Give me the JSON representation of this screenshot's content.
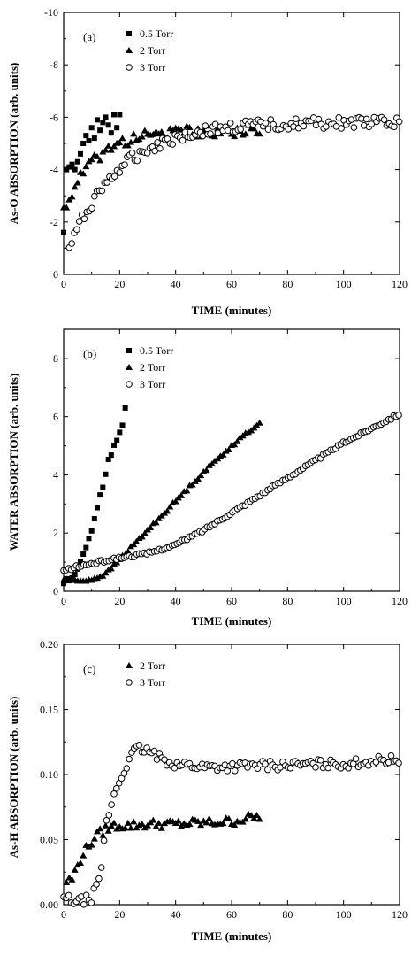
{
  "chart_data": [
    {
      "type": "scatter",
      "panel_label": "(a)",
      "xlabel": "TIME (minutes)",
      "ylabel": "As-O  ABSORPTION  (arb. units)",
      "xlim": [
        0,
        120
      ],
      "ylim": [
        0,
        -10
      ],
      "y_inverted": true,
      "x_ticks": [
        0,
        20,
        40,
        60,
        80,
        100,
        120
      ],
      "y_ticks": [
        0,
        -2,
        -4,
        -6,
        -8,
        -10
      ],
      "y_tick_labels": [
        "0",
        "-2",
        "-4",
        "-6",
        "-8",
        "-10"
      ],
      "legend_position": "top-left",
      "series": [
        {
          "name": "0.5 Torr",
          "marker": "filled-square",
          "x_range": [
            0,
            20
          ],
          "values_hint": "rapid rise",
          "points": [
            [
              0,
              -1.6
            ],
            [
              1,
              -4.0
            ],
            [
              2,
              -4.1
            ],
            [
              3,
              -4.2
            ],
            [
              4,
              -4.0
            ],
            [
              5,
              -4.3
            ],
            [
              6,
              -4.6
            ],
            [
              7,
              -5.0
            ],
            [
              8,
              -5.3
            ],
            [
              9,
              -5.1
            ],
            [
              10,
              -5.6
            ],
            [
              11,
              -5.2
            ],
            [
              12,
              -5.9
            ],
            [
              13,
              -5.5
            ],
            [
              14,
              -5.8
            ],
            [
              15,
              -6.0
            ],
            [
              16,
              -5.7
            ],
            [
              17,
              -5.4
            ],
            [
              18,
              -6.1
            ],
            [
              19,
              -5.6
            ],
            [
              20,
              -6.1
            ]
          ]
        },
        {
          "name": "2 Torr",
          "marker": "filled-triangle",
          "x_range": [
            0,
            70
          ],
          "model": {
            "a": -5.5,
            "b": -2.4,
            "tau": 11
          }
        },
        {
          "name": "3 Torr",
          "marker": "open-circle",
          "x_range": [
            2,
            120
          ],
          "model": {
            "a": -5.8,
            "b": -1.0,
            "tau": 18
          }
        }
      ]
    },
    {
      "type": "scatter",
      "panel_label": "(b)",
      "xlabel": "TIME (minutes)",
      "ylabel": "WATER  ABSORPTION  (arb. units)",
      "xlim": [
        0,
        120
      ],
      "ylim": [
        0,
        9
      ],
      "x_ticks": [
        0,
        20,
        40,
        60,
        80,
        100,
        120
      ],
      "y_ticks": [
        0,
        2,
        4,
        6,
        8
      ],
      "y_tick_labels": [
        "0",
        "2",
        "4",
        "6",
        "8"
      ],
      "legend_position": "top-left",
      "series": [
        {
          "name": "0.5 Torr",
          "marker": "filled-square",
          "points": [
            [
              0,
              0.3
            ],
            [
              1,
              0.4
            ],
            [
              2,
              0.4
            ],
            [
              3,
              0.5
            ],
            [
              4,
              0.6
            ],
            [
              5,
              0.8
            ],
            [
              6,
              1.0
            ],
            [
              7,
              1.3
            ],
            [
              8,
              1.5
            ],
            [
              9,
              1.8
            ],
            [
              10,
              2.1
            ],
            [
              11,
              2.5
            ],
            [
              12,
              2.9
            ],
            [
              13,
              3.3
            ],
            [
              14,
              3.6
            ],
            [
              15,
              4.0
            ],
            [
              16,
              4.5
            ],
            [
              17,
              4.7
            ],
            [
              18,
              5.0
            ],
            [
              19,
              5.2
            ],
            [
              20,
              5.5
            ],
            [
              21,
              5.7
            ],
            [
              22,
              6.3
            ]
          ]
        },
        {
          "name": "2 Torr",
          "marker": "filled-triangle",
          "points": [
            [
              0,
              0.4
            ],
            [
              5,
              0.35
            ],
            [
              10,
              0.4
            ],
            [
              15,
              0.6
            ],
            [
              20,
              1.1
            ],
            [
              30,
              2.1
            ],
            [
              40,
              3.1
            ],
            [
              50,
              4.1
            ],
            [
              60,
              5.0
            ],
            [
              70,
              5.8
            ]
          ]
        },
        {
          "name": "3 Torr",
          "marker": "open-circle",
          "points": [
            [
              0,
              0.7
            ],
            [
              5,
              0.85
            ],
            [
              10,
              0.95
            ],
            [
              15,
              1.05
            ],
            [
              20,
              1.15
            ],
            [
              30,
              1.3
            ],
            [
              40,
              1.6
            ],
            [
              50,
              2.1
            ],
            [
              60,
              2.7
            ],
            [
              70,
              3.3
            ],
            [
              80,
              3.9
            ],
            [
              90,
              4.5
            ],
            [
              100,
              5.1
            ],
            [
              110,
              5.6
            ],
            [
              120,
              6.1
            ]
          ]
        }
      ]
    },
    {
      "type": "scatter",
      "panel_label": "(c)",
      "xlabel": "TIME (minutes)",
      "ylabel": "As-H  ABSORPTION  (arb. units)",
      "xlim": [
        0,
        120
      ],
      "ylim": [
        0,
        0.2
      ],
      "x_ticks": [
        0,
        20,
        40,
        60,
        80,
        100,
        120
      ],
      "y_ticks": [
        0,
        0.05,
        0.1,
        0.15,
        0.2
      ],
      "y_tick_labels": [
        "0.00",
        "0.05",
        "0.10",
        "0.15",
        "0.20"
      ],
      "legend_position": "top-left",
      "series": [
        {
          "name": "2 Torr",
          "marker": "filled-triangle",
          "points": [
            [
              1,
              0.018
            ],
            [
              3,
              0.02
            ],
            [
              5,
              0.03
            ],
            [
              7,
              0.04
            ],
            [
              9,
              0.045
            ],
            [
              11,
              0.052
            ],
            [
              13,
              0.055
            ],
            [
              15,
              0.058
            ],
            [
              17,
              0.06
            ],
            [
              19,
              0.061
            ],
            [
              25,
              0.061
            ],
            [
              30,
              0.062
            ],
            [
              40,
              0.062
            ],
            [
              50,
              0.063
            ],
            [
              60,
              0.064
            ],
            [
              70,
              0.068
            ]
          ]
        },
        {
          "name": "3 Torr",
          "marker": "open-circle",
          "points": [
            [
              0,
              0.005
            ],
            [
              5,
              0.002
            ],
            [
              10,
              0.005
            ],
            [
              13,
              0.02
            ],
            [
              15,
              0.06
            ],
            [
              18,
              0.085
            ],
            [
              20,
              0.095
            ],
            [
              23,
              0.11
            ],
            [
              26,
              0.12
            ],
            [
              30,
              0.118
            ],
            [
              35,
              0.112
            ],
            [
              40,
              0.108
            ],
            [
              50,
              0.106
            ],
            [
              60,
              0.106
            ],
            [
              70,
              0.107
            ],
            [
              80,
              0.107
            ],
            [
              90,
              0.108
            ],
            [
              100,
              0.108
            ],
            [
              110,
              0.11
            ],
            [
              120,
              0.112
            ]
          ]
        }
      ]
    }
  ]
}
